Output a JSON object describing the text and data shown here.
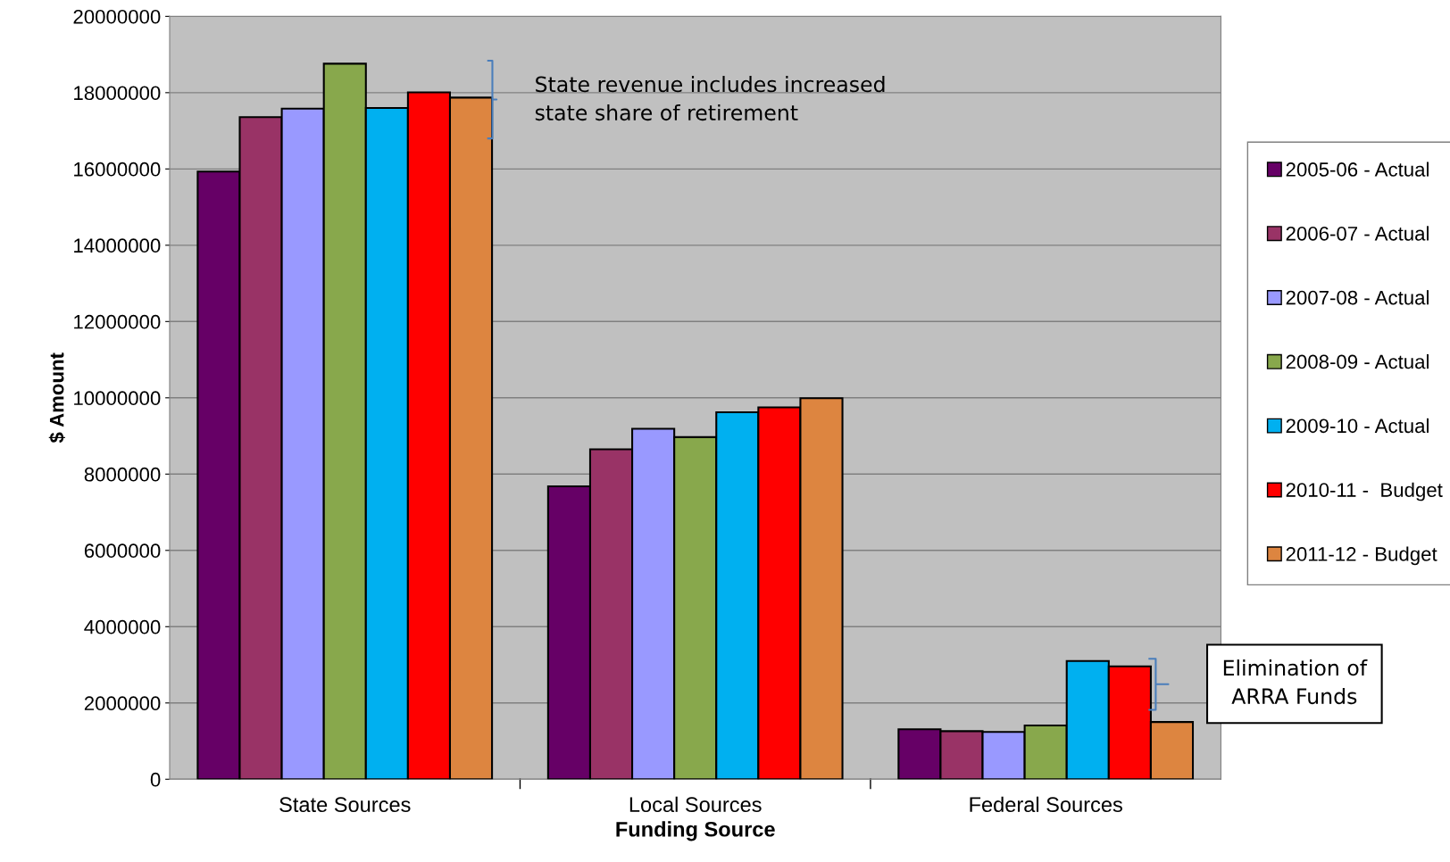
{
  "chart_data": {
    "type": "bar",
    "xlabel": "Funding Source",
    "ylabel": "$ Amount",
    "categories": [
      "State Sources",
      "Local Sources",
      "Federal Sources"
    ],
    "series": [
      {
        "name": "2005-06 - Actual",
        "color": "#660066",
        "values": [
          15930000,
          7680000,
          1310000
        ]
      },
      {
        "name": "2006-07 - Actual",
        "color": "#993366",
        "values": [
          17360000,
          8650000,
          1260000
        ]
      },
      {
        "name": "2007-08 - Actual",
        "color": "#9999ff",
        "values": [
          17580000,
          9190000,
          1240000
        ]
      },
      {
        "name": "2008-09 - Actual",
        "color": "#88a84c",
        "values": [
          18760000,
          8970000,
          1410000
        ]
      },
      {
        "name": "2009-10 - Actual",
        "color": "#00b0f0",
        "values": [
          17600000,
          9620000,
          3100000
        ]
      },
      {
        "name": "2010-11 -  Budget",
        "color": "#ff0000",
        "values": [
          18010000,
          9750000,
          2960000
        ]
      },
      {
        "name": "2011-12 - Budget",
        "color": "#dd8540",
        "values": [
          17870000,
          9990000,
          1500000
        ]
      }
    ],
    "ylim": [
      0,
      20000000
    ],
    "yticks": [
      0,
      2000000,
      4000000,
      6000000,
      8000000,
      10000000,
      12000000,
      14000000,
      16000000,
      18000000,
      20000000
    ],
    "grid": "y",
    "legend": "right",
    "annotations": [
      "State revenue includes increased\nstate share of retirement",
      "Elimination of\nARRA Funds"
    ]
  }
}
